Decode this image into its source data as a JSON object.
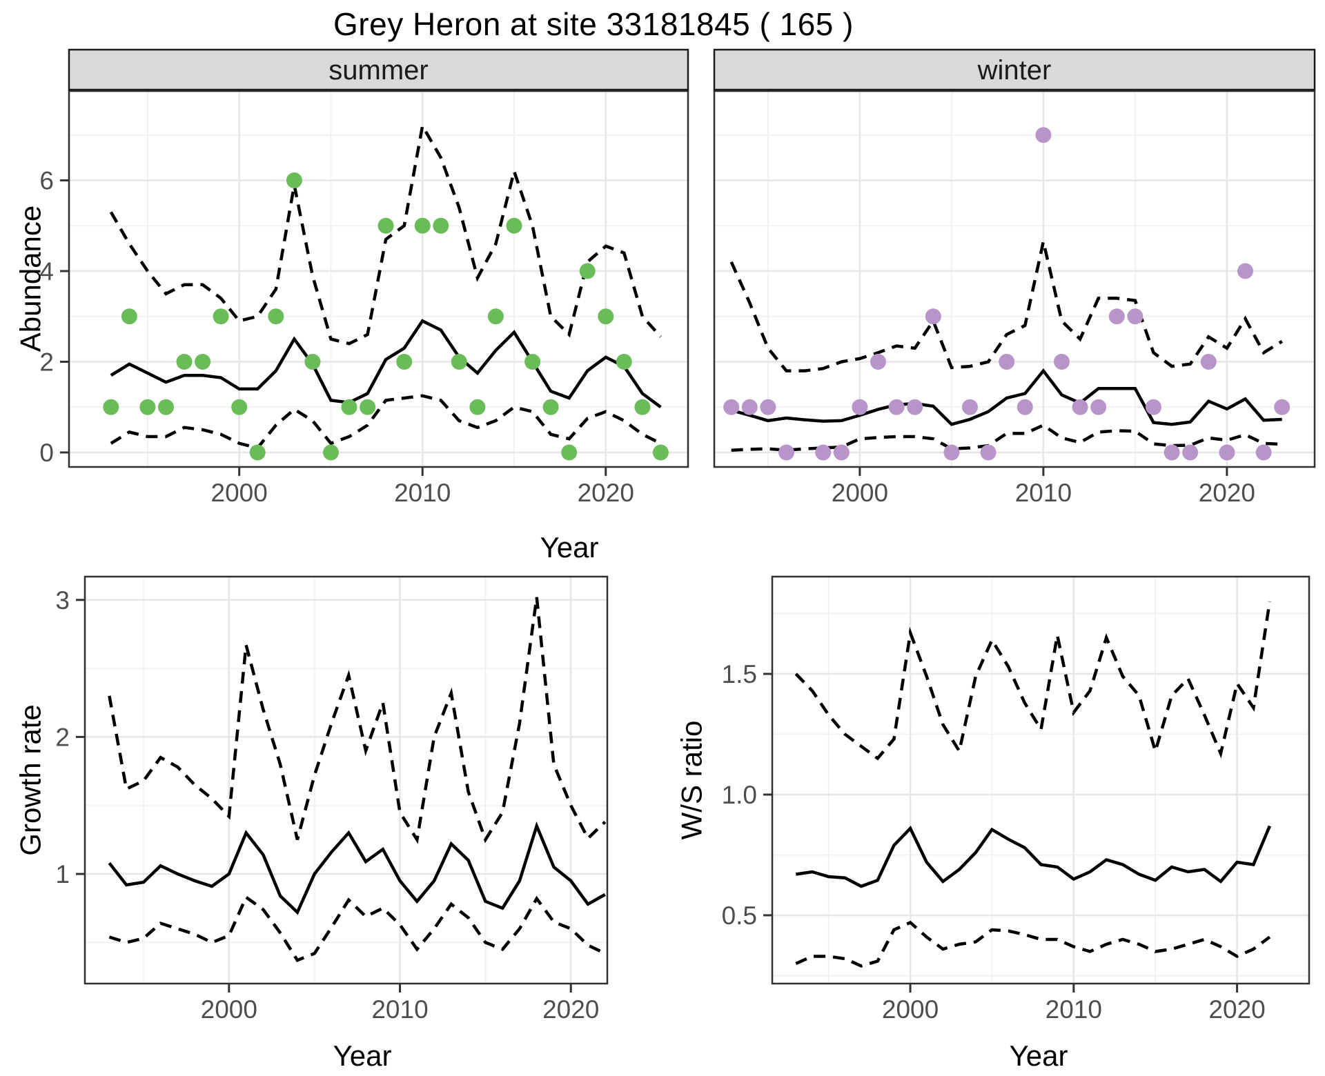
{
  "title": "Grey Heron at site 33181845 ( 165 )",
  "colors": {
    "summer_point": "#6ABC58",
    "winter_point": "#B795C9",
    "line": "#000000",
    "strip_fill": "#D9D9D9",
    "strip_border": "#1A1A1A",
    "panel_border": "#2F2F2F",
    "grid_major": "#E6E6E6",
    "grid_minor": "#F2F2F2",
    "tick": "#333333",
    "tick_label": "#4D4D4D",
    "axis_title": "#000000"
  },
  "chart_data": [
    {
      "id": "abundance-summer",
      "type": "line",
      "facet_label": "summer",
      "ylabel": "Abundance",
      "xlabel": "Year",
      "x": [
        1993,
        1994,
        1995,
        1996,
        1997,
        1998,
        1999,
        2000,
        2001,
        2002,
        2003,
        2004,
        2005,
        2006,
        2007,
        2008,
        2009,
        2010,
        2011,
        2012,
        2013,
        2014,
        2015,
        2016,
        2017,
        2018,
        2019,
        2020,
        2021,
        2022,
        2023
      ],
      "series": [
        {
          "name": "observed-counts",
          "style": "points",
          "color": "#6ABC58",
          "values": [
            1,
            3,
            1,
            1,
            2,
            2,
            3,
            1,
            0,
            3,
            6,
            2,
            0,
            1,
            1,
            5,
            2,
            5,
            5,
            2,
            1,
            3,
            5,
            2,
            1,
            0,
            4,
            3,
            2,
            1,
            0
          ]
        },
        {
          "name": "median",
          "style": "solid",
          "values": [
            1.7,
            1.95,
            1.75,
            1.55,
            1.7,
            1.7,
            1.65,
            1.4,
            1.4,
            1.8,
            2.5,
            1.95,
            1.15,
            1.1,
            1.3,
            2.05,
            2.3,
            2.9,
            2.7,
            2.1,
            1.75,
            2.25,
            2.65,
            2.0,
            1.35,
            1.2,
            1.8,
            2.1,
            1.9,
            1.3,
            1.0
          ]
        },
        {
          "name": "upper-ci",
          "style": "dashed",
          "values": [
            5.3,
            4.6,
            4.0,
            3.5,
            3.7,
            3.7,
            3.4,
            2.9,
            3.0,
            3.6,
            5.9,
            3.9,
            2.5,
            2.4,
            2.6,
            4.7,
            5.0,
            7.2,
            6.5,
            5.4,
            3.85,
            4.6,
            6.2,
            5.0,
            3.0,
            2.6,
            4.2,
            4.55,
            4.4,
            3.0,
            2.55
          ]
        },
        {
          "name": "lower-ci",
          "style": "dashed",
          "values": [
            0.2,
            0.45,
            0.35,
            0.35,
            0.55,
            0.5,
            0.4,
            0.2,
            0.1,
            0.6,
            0.95,
            0.7,
            0.2,
            0.35,
            0.6,
            1.15,
            1.2,
            1.25,
            1.15,
            0.7,
            0.55,
            0.7,
            1.0,
            0.9,
            0.4,
            0.3,
            0.75,
            0.9,
            0.7,
            0.4,
            0.2
          ]
        }
      ],
      "xticks": [
        2000,
        2010,
        2020
      ],
      "xtick_labels": [
        "2000",
        "2010",
        "2020"
      ],
      "xticks_minor": [
        1995,
        2005,
        2015
      ],
      "yticks": [
        0,
        2,
        4,
        6
      ],
      "ytick_labels": [
        "0",
        "2",
        "4",
        "6"
      ],
      "yticks_minor": [
        1,
        3,
        5,
        7
      ],
      "xlim": [
        1990.71,
        2024.49
      ],
      "ylim": [
        -0.32,
        7.97
      ],
      "grid": true,
      "legend": "none"
    },
    {
      "id": "abundance-winter",
      "type": "line",
      "facet_label": "winter",
      "ylabel": null,
      "xlabel": "Year",
      "x": [
        1993,
        1994,
        1995,
        1996,
        1997,
        1998,
        1999,
        2000,
        2001,
        2002,
        2003,
        2004,
        2005,
        2006,
        2007,
        2008,
        2009,
        2010,
        2011,
        2012,
        2013,
        2014,
        2015,
        2016,
        2017,
        2018,
        2019,
        2020,
        2021,
        2022,
        2023
      ],
      "series": [
        {
          "name": "observed-counts",
          "style": "points",
          "color": "#B795C9",
          "values": [
            1,
            1,
            1,
            0,
            null,
            0,
            0,
            1,
            2,
            1,
            1,
            3,
            0,
            1,
            0,
            2,
            1,
            7,
            2,
            1,
            1,
            3,
            3,
            1,
            0,
            0,
            2,
            0,
            4,
            0,
            1
          ]
        },
        {
          "name": "median",
          "style": "solid",
          "values": [
            0.93,
            0.82,
            0.7,
            0.76,
            0.72,
            0.69,
            0.7,
            0.82,
            0.95,
            1.05,
            1.08,
            1.02,
            0.62,
            0.73,
            0.9,
            1.2,
            1.3,
            1.8,
            1.27,
            1.09,
            1.41,
            1.41,
            1.41,
            0.66,
            0.62,
            0.67,
            1.13,
            0.96,
            1.18,
            0.71,
            0.73
          ]
        },
        {
          "name": "upper-ci",
          "style": "dashed",
          "values": [
            4.2,
            3.3,
            2.3,
            1.8,
            1.8,
            1.85,
            2.0,
            2.07,
            2.2,
            2.35,
            2.3,
            2.9,
            1.87,
            1.9,
            2.0,
            2.6,
            2.8,
            4.65,
            2.9,
            2.5,
            3.4,
            3.4,
            3.35,
            2.2,
            1.9,
            1.95,
            2.55,
            2.3,
            2.95,
            2.2,
            2.45
          ]
        },
        {
          "name": "lower-ci",
          "style": "dashed",
          "values": [
            0.05,
            0.07,
            0.08,
            0.05,
            0.08,
            0.1,
            0.12,
            0.3,
            0.33,
            0.35,
            0.35,
            0.3,
            0.08,
            0.1,
            0.15,
            0.42,
            0.42,
            0.6,
            0.32,
            0.22,
            0.45,
            0.48,
            0.47,
            0.19,
            0.15,
            0.16,
            0.32,
            0.27,
            0.39,
            0.2,
            0.18
          ]
        }
      ],
      "xticks": [
        2000,
        2010,
        2020
      ],
      "xtick_labels": [
        "2000",
        "2010",
        "2020"
      ],
      "xticks_minor": [
        1995,
        2005,
        2015
      ],
      "yticks": [
        0,
        2,
        4,
        6
      ],
      "ytick_labels": [],
      "yticks_minor": [
        1,
        3,
        5,
        7
      ],
      "xlim": [
        1992.07,
        2024.78
      ],
      "ylim": [
        -0.32,
        7.97
      ],
      "grid": true,
      "legend": "none"
    },
    {
      "id": "growth-rate",
      "type": "line",
      "facet_label": null,
      "ylabel": "Growth rate",
      "xlabel": "Year",
      "x": [
        1993,
        1994,
        1995,
        1996,
        1997,
        1998,
        1999,
        2000,
        2001,
        2002,
        2003,
        2004,
        2005,
        2006,
        2007,
        2008,
        2009,
        2010,
        2011,
        2012,
        2013,
        2014,
        2015,
        2016,
        2017,
        2018,
        2019,
        2020,
        2021,
        2022
      ],
      "series": [
        {
          "name": "median",
          "style": "solid",
          "values": [
            1.08,
            0.92,
            0.94,
            1.06,
            1.0,
            0.95,
            0.91,
            1.0,
            1.3,
            1.14,
            0.84,
            0.72,
            1.0,
            1.16,
            1.3,
            1.09,
            1.18,
            0.95,
            0.8,
            0.95,
            1.22,
            1.1,
            0.8,
            0.75,
            0.95,
            1.35,
            1.05,
            0.95,
            0.78,
            0.85
          ]
        },
        {
          "name": "upper-ci",
          "style": "dashed",
          "values": [
            2.3,
            1.62,
            1.68,
            1.85,
            1.78,
            1.65,
            1.55,
            1.42,
            2.67,
            2.2,
            1.8,
            1.25,
            1.72,
            2.1,
            2.45,
            1.9,
            2.25,
            1.45,
            1.25,
            2.0,
            2.32,
            1.6,
            1.25,
            1.45,
            2.1,
            3.02,
            1.8,
            1.5,
            1.26,
            1.38
          ]
        },
        {
          "name": "lower-ci",
          "style": "dashed",
          "values": [
            0.54,
            0.5,
            0.53,
            0.64,
            0.6,
            0.56,
            0.5,
            0.55,
            0.83,
            0.74,
            0.57,
            0.37,
            0.42,
            0.61,
            0.81,
            0.69,
            0.75,
            0.63,
            0.45,
            0.6,
            0.78,
            0.68,
            0.5,
            0.45,
            0.6,
            0.82,
            0.65,
            0.6,
            0.48,
            0.42
          ]
        }
      ],
      "xticks": [
        2000,
        2010,
        2020
      ],
      "xtick_labels": [
        "2000",
        "2010",
        "2020"
      ],
      "xticks_minor": [
        1995,
        2005,
        2015
      ],
      "yticks": [
        1,
        2,
        3
      ],
      "ytick_labels": [
        "1",
        "2",
        "3"
      ],
      "yticks_minor": [
        0.5,
        1.5,
        2.5
      ],
      "xlim": [
        1991.57,
        2022.13
      ],
      "ylim": [
        0.2,
        3.17
      ],
      "grid": true,
      "legend": "none"
    },
    {
      "id": "ws-ratio",
      "type": "line",
      "facet_label": null,
      "ylabel": "W/S ratio",
      "xlabel": "Year",
      "x": [
        1993,
        1994,
        1995,
        1996,
        1997,
        1998,
        1999,
        2000,
        2001,
        2002,
        2003,
        2004,
        2005,
        2006,
        2007,
        2008,
        2009,
        2010,
        2011,
        2012,
        2013,
        2014,
        2015,
        2016,
        2017,
        2018,
        2019,
        2020,
        2021,
        2022
      ],
      "series": [
        {
          "name": "median",
          "style": "solid",
          "values": [
            0.67,
            0.68,
            0.66,
            0.655,
            0.62,
            0.645,
            0.79,
            0.86,
            0.72,
            0.64,
            0.69,
            0.76,
            0.855,
            0.815,
            0.78,
            0.71,
            0.7,
            0.65,
            0.68,
            0.73,
            0.71,
            0.67,
            0.645,
            0.7,
            0.68,
            0.69,
            0.64,
            0.72,
            0.71,
            0.87
          ]
        },
        {
          "name": "upper-ci",
          "style": "dashed",
          "values": [
            1.5,
            1.43,
            1.33,
            1.25,
            1.2,
            1.15,
            1.23,
            1.67,
            1.49,
            1.29,
            1.18,
            1.49,
            1.64,
            1.53,
            1.38,
            1.27,
            1.66,
            1.34,
            1.43,
            1.65,
            1.49,
            1.41,
            1.18,
            1.41,
            1.48,
            1.33,
            1.17,
            1.46,
            1.36,
            1.8
          ]
        },
        {
          "name": "lower-ci",
          "style": "dashed",
          "values": [
            0.3,
            0.33,
            0.33,
            0.32,
            0.29,
            0.31,
            0.44,
            0.47,
            0.41,
            0.36,
            0.38,
            0.39,
            0.44,
            0.435,
            0.42,
            0.4,
            0.4,
            0.37,
            0.35,
            0.38,
            0.4,
            0.38,
            0.35,
            0.36,
            0.38,
            0.4,
            0.37,
            0.33,
            0.36,
            0.41
          ]
        }
      ],
      "xticks": [
        2000,
        2010,
        2020
      ],
      "xtick_labels": [
        "2000",
        "2010",
        "2020"
      ],
      "xticks_minor": [
        1995,
        2005,
        2015
      ],
      "yticks": [
        0.5,
        1.0,
        1.5
      ],
      "ytick_labels": [
        "0.5",
        "1.0",
        "1.5"
      ],
      "yticks_minor": [
        0.25,
        0.75,
        1.25,
        1.75
      ],
      "xlim": [
        1991.55,
        2024.41
      ],
      "ylim": [
        0.217,
        1.903
      ],
      "grid": true,
      "legend": "none"
    }
  ]
}
